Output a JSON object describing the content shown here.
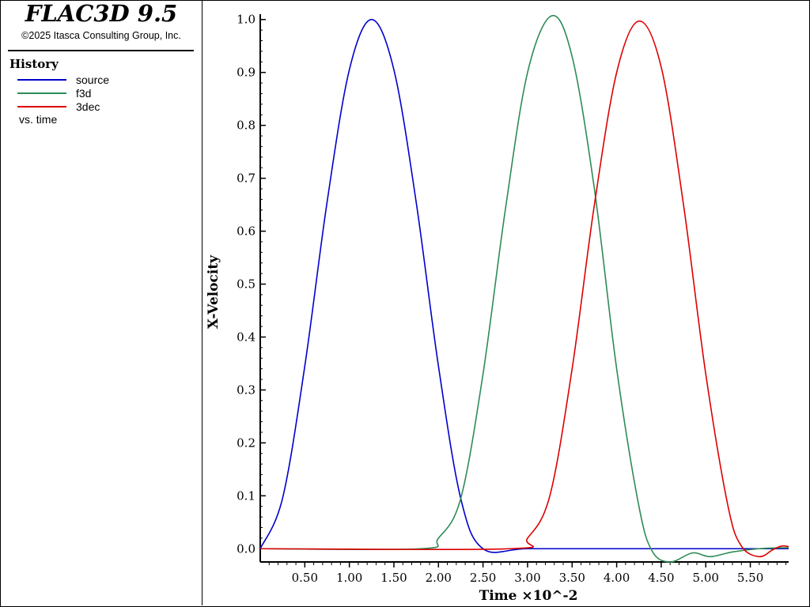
{
  "app": {
    "title": "FLAC3D 9.5",
    "copyright": "©2025 Itasca Consulting Group, Inc."
  },
  "legend": {
    "section_title": "History",
    "vs_label": "vs. time"
  },
  "chart_data": {
    "type": "line",
    "xlabel": "Time ×10^-2",
    "ylabel": "X-Velocity",
    "xlim": [
      0.0,
      5.93
    ],
    "ylim": [
      -0.025,
      1.01
    ],
    "x_ticks": [
      0.5,
      1.0,
      1.5,
      2.0,
      2.5,
      3.0,
      3.5,
      4.0,
      4.5,
      5.0,
      5.5
    ],
    "x_tick_labels": [
      "0.50",
      "1.00",
      "1.50",
      "2.00",
      "2.50",
      "3.00",
      "3.50",
      "4.00",
      "4.50",
      "5.00",
      "5.50"
    ],
    "y_ticks": [
      0.0,
      0.1,
      0.2,
      0.3,
      0.4,
      0.5,
      0.6,
      0.7,
      0.8,
      0.9,
      1.0
    ],
    "y_tick_labels": [
      "0.0",
      "0.1",
      "0.2",
      "0.3",
      "0.4",
      "0.5",
      "0.6",
      "0.7",
      "0.8",
      "0.9",
      "1.0"
    ],
    "grid": false,
    "legend_position": "left-panel",
    "series": [
      {
        "name": "source",
        "color": "#0000cc",
        "x": [
          0.0,
          0.25,
          0.5,
          0.75,
          1.0,
          1.25,
          1.5,
          1.75,
          2.0,
          2.25,
          2.5,
          3.0,
          4.0,
          5.0,
          5.93
        ],
        "y": [
          0.0,
          0.095,
          0.345,
          0.655,
          0.905,
          1.0,
          0.905,
          0.655,
          0.345,
          0.095,
          0.0,
          0.0,
          0.0,
          0.0,
          0.0
        ]
      },
      {
        "name": "f3d",
        "color": "#2e8b57",
        "x": [
          0.0,
          1.8,
          2.0,
          2.25,
          2.5,
          2.75,
          3.0,
          3.27,
          3.5,
          3.75,
          4.0,
          4.25,
          4.4,
          4.6,
          4.85,
          5.05,
          5.3,
          5.6,
          5.93
        ],
        "y": [
          0.0,
          0.0,
          0.02,
          0.095,
          0.33,
          0.64,
          0.9,
          1.007,
          0.93,
          0.68,
          0.34,
          0.08,
          -0.005,
          -0.025,
          -0.008,
          -0.015,
          -0.006,
          0.0,
          0.002
        ]
      },
      {
        "name": "3dec",
        "color": "#dd0000",
        "x": [
          0.0,
          2.8,
          3.0,
          3.25,
          3.5,
          3.75,
          4.0,
          4.25,
          4.5,
          4.75,
          5.0,
          5.25,
          5.4,
          5.6,
          5.75,
          5.85,
          5.93
        ],
        "y": [
          0.0,
          0.0,
          0.02,
          0.1,
          0.34,
          0.65,
          0.9,
          0.997,
          0.91,
          0.65,
          0.33,
          0.08,
          0.005,
          -0.015,
          -0.002,
          0.005,
          0.004
        ]
      }
    ]
  }
}
